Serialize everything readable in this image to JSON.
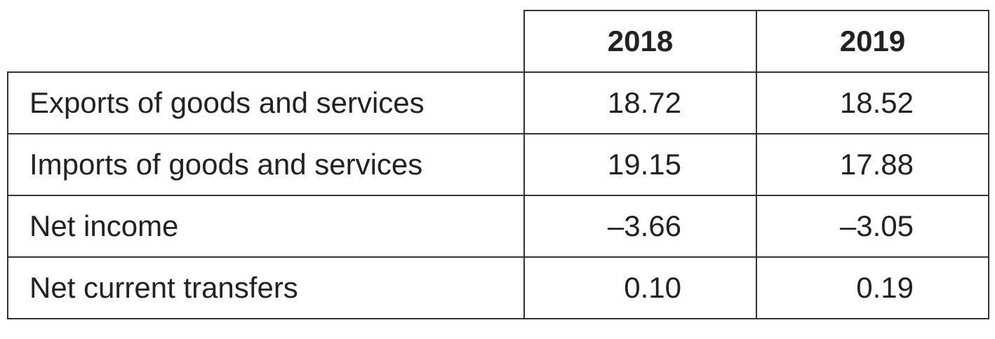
{
  "table": {
    "header": [
      "2018",
      "2019"
    ],
    "rows": [
      [
        "Exports of goods and services",
        "18.72",
        "18.52"
      ],
      [
        "Imports of goods and services",
        "19.15",
        "17.88"
      ],
      [
        "Net income",
        "–3.66",
        "–3.05"
      ],
      [
        "Net current transfers",
        "0.10",
        "0.19"
      ]
    ]
  }
}
